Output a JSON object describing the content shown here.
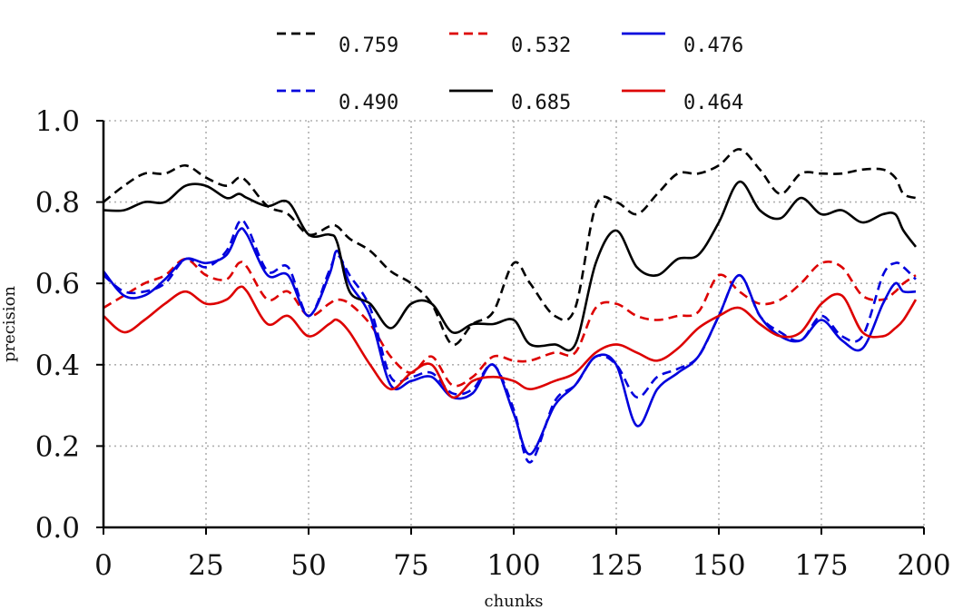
{
  "chart_data": {
    "type": "line",
    "xlabel": "chunks",
    "ylabel": "precision",
    "xlim": [
      0,
      200
    ],
    "ylim": [
      0.0,
      1.0
    ],
    "x_ticks": [
      0,
      25,
      50,
      75,
      100,
      125,
      150,
      175,
      200
    ],
    "y_ticks": [
      "0.0",
      "0.2",
      "0.4",
      "0.6",
      "0.8",
      "1.0"
    ],
    "grid": true,
    "legend_position": "top",
    "x": [
      0,
      5,
      10,
      15,
      20,
      25,
      30,
      33,
      35,
      40,
      45,
      50,
      55,
      57,
      60,
      65,
      70,
      75,
      80,
      85,
      90,
      95,
      100,
      104,
      110,
      115,
      120,
      125,
      130,
      135,
      140,
      145,
      150,
      155,
      160,
      165,
      170,
      175,
      180,
      185,
      190,
      193,
      195,
      198
    ],
    "series": [
      {
        "name": "0.759",
        "color": "#000000",
        "dash": "dashed",
        "values": [
          0.8,
          0.84,
          0.87,
          0.87,
          0.89,
          0.86,
          0.84,
          0.86,
          0.85,
          0.79,
          0.77,
          0.72,
          0.74,
          0.74,
          0.71,
          0.68,
          0.63,
          0.6,
          0.55,
          0.45,
          0.5,
          0.53,
          0.65,
          0.6,
          0.52,
          0.54,
          0.79,
          0.8,
          0.77,
          0.82,
          0.87,
          0.87,
          0.89,
          0.93,
          0.88,
          0.82,
          0.87,
          0.87,
          0.87,
          0.88,
          0.88,
          0.86,
          0.82,
          0.81
        ]
      },
      {
        "name": "0.532",
        "color": "#dd0000",
        "dash": "dashed",
        "values": [
          0.54,
          0.57,
          0.6,
          0.62,
          0.66,
          0.62,
          0.61,
          0.65,
          0.64,
          0.56,
          0.58,
          0.52,
          0.55,
          0.56,
          0.55,
          0.5,
          0.42,
          0.38,
          0.42,
          0.35,
          0.37,
          0.42,
          0.41,
          0.41,
          0.43,
          0.43,
          0.54,
          0.55,
          0.52,
          0.51,
          0.52,
          0.53,
          0.62,
          0.58,
          0.55,
          0.56,
          0.6,
          0.65,
          0.64,
          0.57,
          0.56,
          0.58,
          0.6,
          0.62
        ]
      },
      {
        "name": "0.476",
        "color": "#0000dd",
        "dash": "solid",
        "values": [
          0.63,
          0.57,
          0.57,
          0.61,
          0.66,
          0.65,
          0.67,
          0.73,
          0.72,
          0.62,
          0.62,
          0.52,
          0.62,
          0.68,
          0.6,
          0.52,
          0.35,
          0.36,
          0.37,
          0.32,
          0.33,
          0.4,
          0.28,
          0.18,
          0.3,
          0.35,
          0.42,
          0.4,
          0.25,
          0.34,
          0.38,
          0.42,
          0.52,
          0.62,
          0.52,
          0.47,
          0.46,
          0.51,
          0.46,
          0.44,
          0.55,
          0.6,
          0.58,
          0.58
        ]
      },
      {
        "name": "0.490",
        "color": "#0000dd",
        "dash": "dashed",
        "values": [
          0.62,
          0.58,
          0.58,
          0.6,
          0.66,
          0.64,
          0.68,
          0.75,
          0.74,
          0.63,
          0.64,
          0.52,
          0.63,
          0.67,
          0.62,
          0.54,
          0.37,
          0.37,
          0.38,
          0.33,
          0.34,
          0.4,
          0.29,
          0.16,
          0.31,
          0.35,
          0.42,
          0.4,
          0.32,
          0.37,
          0.39,
          0.42,
          0.52,
          0.62,
          0.52,
          0.48,
          0.46,
          0.52,
          0.47,
          0.47,
          0.62,
          0.65,
          0.64,
          0.61
        ]
      },
      {
        "name": "0.685",
        "color": "#000000",
        "dash": "solid",
        "values": [
          0.78,
          0.78,
          0.8,
          0.8,
          0.84,
          0.84,
          0.81,
          0.82,
          0.81,
          0.79,
          0.8,
          0.72,
          0.72,
          0.7,
          0.58,
          0.55,
          0.49,
          0.55,
          0.55,
          0.48,
          0.5,
          0.5,
          0.51,
          0.45,
          0.45,
          0.45,
          0.65,
          0.73,
          0.64,
          0.62,
          0.66,
          0.67,
          0.75,
          0.85,
          0.78,
          0.76,
          0.81,
          0.77,
          0.78,
          0.75,
          0.77,
          0.77,
          0.73,
          0.69
        ]
      },
      {
        "name": "0.464",
        "color": "#dd0000",
        "dash": "solid",
        "values": [
          0.52,
          0.48,
          0.51,
          0.55,
          0.58,
          0.55,
          0.56,
          0.59,
          0.58,
          0.5,
          0.52,
          0.47,
          0.5,
          0.51,
          0.48,
          0.4,
          0.34,
          0.38,
          0.4,
          0.32,
          0.36,
          0.37,
          0.36,
          0.34,
          0.36,
          0.38,
          0.43,
          0.45,
          0.43,
          0.41,
          0.44,
          0.49,
          0.52,
          0.54,
          0.5,
          0.47,
          0.48,
          0.55,
          0.57,
          0.48,
          0.47,
          0.49,
          0.51,
          0.56
        ]
      }
    ]
  }
}
